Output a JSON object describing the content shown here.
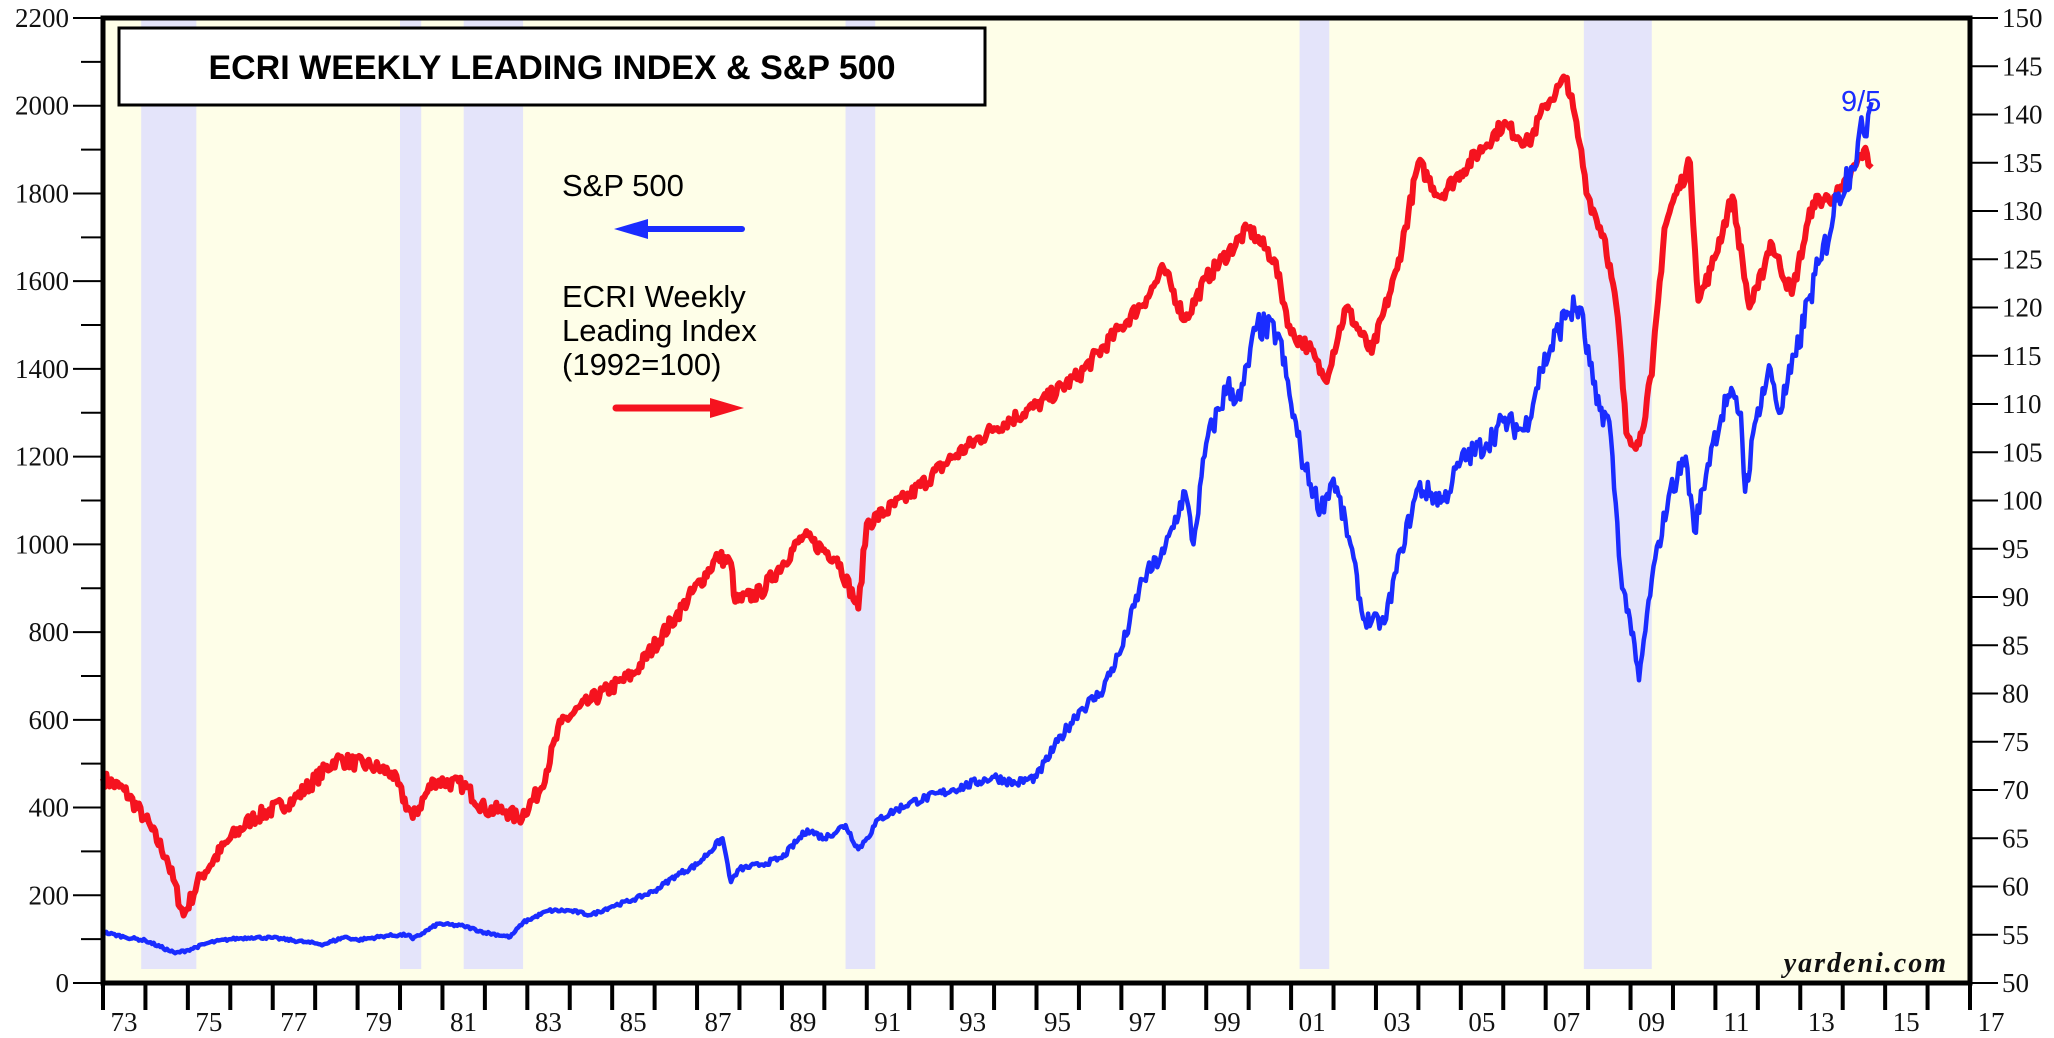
{
  "chart_data": {
    "type": "line",
    "title": "ECRI WEEKLY LEADING INDEX & S&P 500",
    "source": "yardeni.com",
    "colors": {
      "background": "#fefee8",
      "recession": "#e4e4fa",
      "sp500": "#1a2cff",
      "ecri": "#f5131f",
      "frame": "#000000"
    },
    "x_axis": {
      "range": [
        1973,
        2017
      ],
      "tick_labels": [
        "73",
        "75",
        "77",
        "79",
        "81",
        "83",
        "85",
        "87",
        "89",
        "91",
        "93",
        "95",
        "97",
        "99",
        "01",
        "03",
        "05",
        "07",
        "09",
        "11",
        "13",
        "15",
        "17"
      ],
      "major_every_years": 1,
      "labeled_every_years": 2
    },
    "y_left": {
      "label": "",
      "range": [
        0,
        2200
      ],
      "tick_labels": [
        "0",
        "200",
        "400",
        "600",
        "800",
        "1000",
        "1200",
        "1400",
        "1600",
        "1800",
        "2000",
        "2200"
      ],
      "minor_step": 100
    },
    "y_right": {
      "label": "",
      "range": [
        50,
        150
      ],
      "tick_labels": [
        "50",
        "55",
        "60",
        "65",
        "70",
        "75",
        "80",
        "85",
        "90",
        "95",
        "100",
        "105",
        "110",
        "115",
        "120",
        "125",
        "130",
        "135",
        "140",
        "145",
        "150"
      ]
    },
    "recessions": [
      [
        1973.9,
        1975.2
      ],
      [
        1980.0,
        1980.5
      ],
      [
        1981.5,
        1982.9
      ],
      [
        1990.5,
        1991.2
      ],
      [
        2001.2,
        2001.9
      ],
      [
        2007.9,
        2009.5
      ]
    ],
    "legend": {
      "sp500_label": "S&P 500",
      "sp500_axis": "left",
      "ecri_label_lines": [
        "ECRI Weekly",
        "Leading Index",
        "(1992=100)"
      ],
      "ecri_axis": "right"
    },
    "end_label": "9/5",
    "series": [
      {
        "name": "S&P 500",
        "axis": "left",
        "x": [
          1973.0,
          1973.5,
          1974.0,
          1974.7,
          1975.0,
          1975.5,
          1976.0,
          1976.5,
          1977.0,
          1977.8,
          1978.2,
          1978.7,
          1979.0,
          1979.7,
          1980.2,
          1980.3,
          1980.9,
          1981.5,
          1982.0,
          1982.6,
          1982.9,
          1983.5,
          1984.0,
          1984.5,
          1985.0,
          1985.5,
          1986.0,
          1986.5,
          1987.0,
          1987.6,
          1987.8,
          1988.0,
          1988.5,
          1989.0,
          1989.6,
          1990.0,
          1990.5,
          1990.8,
          1991.0,
          1991.3,
          1992.0,
          1993.0,
          1994.0,
          1994.5,
          1995.0,
          1995.5,
          1996.0,
          1996.5,
          1997.0,
          1997.5,
          1998.0,
          1998.5,
          1998.7,
          1999.0,
          1999.5,
          1999.8,
          2000.2,
          2000.7,
          2001.0,
          2001.3,
          2001.7,
          2002.0,
          2002.4,
          2002.7,
          2003.2,
          2003.6,
          2004.0,
          2004.6,
          2005.0,
          2005.6,
          2006.0,
          2006.5,
          2006.9,
          2007.5,
          2007.8,
          2008.2,
          2008.5,
          2008.8,
          2008.95,
          2009.2,
          2009.5,
          2009.9,
          2010.3,
          2010.5,
          2010.9,
          2011.3,
          2011.6,
          2011.7,
          2012.0,
          2012.3,
          2012.5,
          2012.9,
          2013.2,
          2013.5,
          2013.9,
          2014.2,
          2014.6,
          2014.68
        ],
        "values": [
          116,
          105,
          97,
          68,
          75,
          92,
          100,
          104,
          103,
          93,
          88,
          105,
          98,
          108,
          110,
          100,
          135,
          130,
          115,
          105,
          138,
          165,
          165,
          155,
          175,
          190,
          210,
          245,
          270,
          330,
          230,
          260,
          270,
          285,
          350,
          330,
          360,
          305,
          330,
          375,
          410,
          440,
          470,
          455,
          470,
          550,
          620,
          660,
          760,
          920,
          980,
          1120,
          1000,
          1230,
          1360,
          1330,
          1500,
          1480,
          1320,
          1180,
          1080,
          1150,
          1000,
          830,
          820,
          990,
          1130,
          1100,
          1190,
          1230,
          1280,
          1260,
          1400,
          1530,
          1540,
          1320,
          1280,
          900,
          850,
          690,
          920,
          1110,
          1200,
          1030,
          1220,
          1340,
          1300,
          1120,
          1310,
          1400,
          1300,
          1430,
          1560,
          1650,
          1800,
          1860,
          1980,
          2008
        ]
      },
      {
        "name": "ECRI Weekly Leading Index (1992=100)",
        "axis": "right",
        "x": [
          1973.0,
          1973.5,
          1974.0,
          1974.5,
          1974.9,
          1975.3,
          1976.0,
          1976.5,
          1977.5,
          1978.5,
          1979.3,
          1979.8,
          1980.3,
          1980.8,
          1981.5,
          1982.0,
          1982.5,
          1982.8,
          1983.3,
          1983.8,
          1984.5,
          1985.5,
          1986.5,
          1987.5,
          1987.8,
          1987.9,
          1988.5,
          1989.5,
          1990.3,
          1990.8,
          1991.0,
          1992.0,
          1993.0,
          1994.0,
          1995.0,
          1996.0,
          1997.0,
          1997.6,
          1998.0,
          1998.5,
          1999.0,
          2000.0,
          2000.6,
          2001.0,
          2001.4,
          2001.8,
          2002.3,
          2002.9,
          2003.5,
          2004.0,
          2004.5,
          2005.0,
          2006.0,
          2006.6,
          2007.0,
          2007.5,
          2007.8,
          2008.0,
          2008.4,
          2008.7,
          2008.9,
          2009.2,
          2009.5,
          2009.8,
          2010.0,
          2010.4,
          2010.6,
          2010.9,
          2011.4,
          2011.8,
          2012.0,
          2012.3,
          2012.8,
          2013.3,
          2013.8,
          2014.0,
          2014.5,
          2014.68
        ],
        "values": [
          71.2,
          70,
          67,
          63,
          57,
          61,
          65,
          67,
          69,
          73.2,
          72.5,
          71.8,
          67.1,
          71,
          70.5,
          68,
          67.8,
          67,
          70,
          77,
          79.3,
          82,
          88,
          94.2,
          93.5,
          89.5,
          90.5,
          96.3,
          94,
          88.8,
          97.6,
          100.5,
          104.4,
          107.5,
          109.8,
          113,
          118,
          121,
          124,
          118.7,
          123,
          128.2,
          125,
          117.3,
          116,
          112.5,
          120,
          115.3,
          124,
          135,
          131.5,
          134,
          139,
          137,
          141,
          143.8,
          137,
          131.5,
          127,
          119,
          107,
          105.8,
          113,
          128.2,
          131,
          135,
          120.7,
          124,
          131.5,
          120,
          122,
          126.8,
          121.4,
          130.9,
          131.5,
          132.2,
          136.3,
          134.5
        ]
      }
    ]
  }
}
